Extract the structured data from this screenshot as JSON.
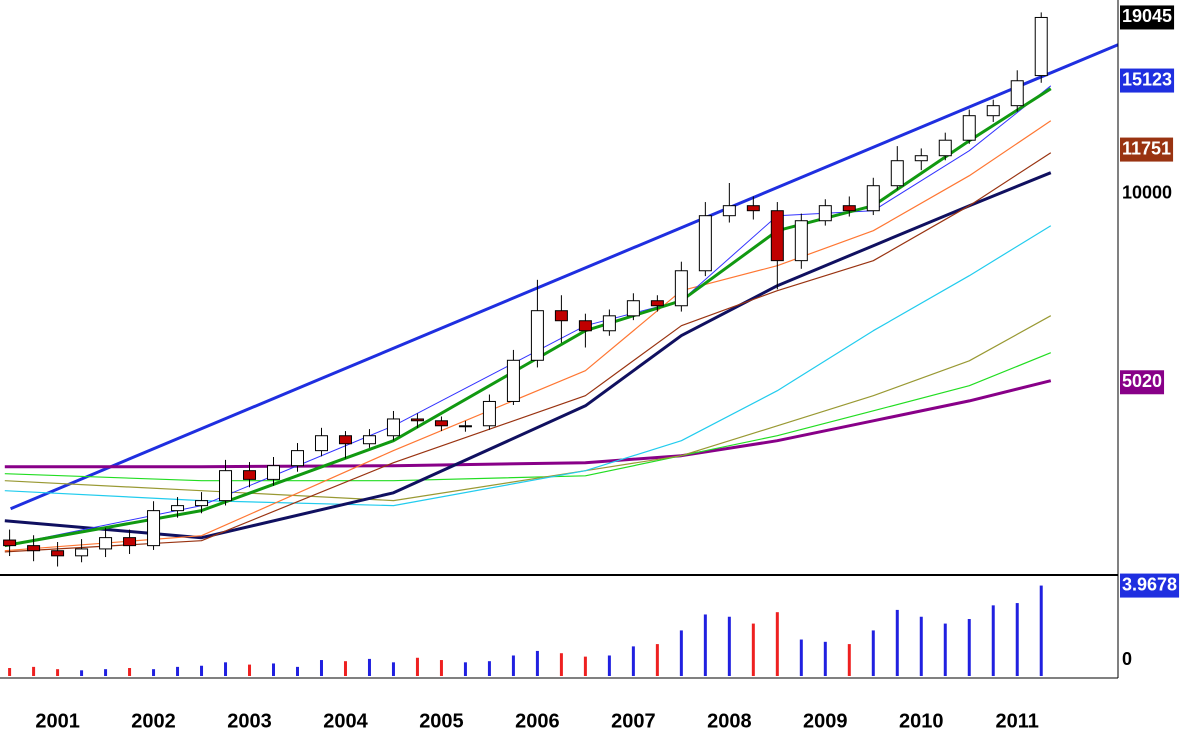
{
  "chart_data": {
    "type": "candlestick",
    "log_scale": true,
    "xlim": [
      2000.4,
      2012.05
    ],
    "xticks": [
      2001,
      2002,
      2003,
      2004,
      2005,
      2006,
      2007,
      2008,
      2009,
      2010,
      2011
    ],
    "ylim": [
      2500,
      20300
    ],
    "x": [
      2000.5,
      2000.75,
      2001,
      2001.25,
      2001.5,
      2001.75,
      2002,
      2002.25,
      2002.5,
      2002.75,
      2003,
      2003.25,
      2003.5,
      2003.75,
      2004,
      2004.25,
      2004.5,
      2004.75,
      2005,
      2005.25,
      2005.5,
      2005.75,
      2006,
      2006.25,
      2006.5,
      2006.75,
      2007,
      2007.25,
      2007.5,
      2007.75,
      2008,
      2008.25,
      2008.5,
      2008.75,
      2009,
      2009.25,
      2009.5,
      2009.75,
      2010,
      2010.25,
      2010.5,
      2010.75,
      2011,
      2011.25
    ],
    "open": [
      2820,
      2763,
      2712,
      2662,
      2730,
      2845,
      2763,
      3140,
      3198,
      3257,
      3634,
      3520,
      3701,
      3910,
      4129,
      4010,
      4129,
      4390,
      4361,
      4282,
      4282,
      4680,
      5440,
      6521,
      6286,
      6060,
      6400,
      6763,
      6640,
      7546,
      9228,
      9572,
      9398,
      7830,
      9060,
      9572,
      9398,
      10297,
      11282,
      11490,
      12160,
      13300,
      13796,
      15400
    ],
    "high": [
      2930,
      2870,
      2800,
      2830,
      2950,
      2930,
      3250,
      3300,
      3360,
      3780,
      3750,
      3820,
      4020,
      4250,
      4200,
      4230,
      4520,
      4480,
      4430,
      4360,
      4800,
      5650,
      7300,
      6900,
      6450,
      6550,
      6950,
      6900,
      7800,
      9700,
      10400,
      9900,
      9700,
      9300,
      9800,
      9900,
      10600,
      11900,
      11800,
      12500,
      13600,
      14100,
      15700,
      19400
    ],
    "low": [
      2660,
      2610,
      2560,
      2600,
      2650,
      2680,
      2720,
      3060,
      3110,
      3200,
      3420,
      3440,
      3620,
      3830,
      3800,
      3950,
      4060,
      4250,
      4200,
      4190,
      4220,
      4620,
      5300,
      5800,
      5700,
      5950,
      6300,
      6500,
      6500,
      7400,
      9000,
      9100,
      7050,
      7600,
      8900,
      9200,
      9250,
      10150,
      10900,
      11300,
      12000,
      13000,
      13500,
      15000
    ],
    "close": [
      2763,
      2712,
      2662,
      2730,
      2845,
      2763,
      3140,
      3198,
      3257,
      3634,
      3520,
      3701,
      3910,
      4129,
      4010,
      4129,
      4390,
      4361,
      4282,
      4282,
      4680,
      5440,
      6521,
      6286,
      6060,
      6400,
      6763,
      6640,
      7546,
      9228,
      9572,
      9398,
      7830,
      9060,
      9572,
      9398,
      10297,
      11282,
      11490,
      12160,
      13300,
      13796,
      15111,
      19045
    ],
    "up_color": "#ffffff",
    "down_color": "#c00000",
    "overlays": [
      {
        "color": "#1f2fe0",
        "width": 3,
        "x": [
          2000.51,
          2012.05
        ],
        "values": [
          3162,
          17240
        ]
      },
      {
        "color": "#880088",
        "width": 3,
        "x": [
          2000.45,
          2002.5,
          2004.5,
          2006.5,
          2007.5,
          2008.5,
          2009.5,
          2010.5,
          2011.35
        ],
        "values": [
          3687,
          3687,
          3701,
          3741,
          3838,
          4054,
          4361,
          4690,
          5049
        ]
      },
      {
        "color": "#22dd22",
        "width": 1.2,
        "x": [
          2000.45,
          2002.5,
          2004.5,
          2006.5,
          2007.5,
          2008.5,
          2009.5,
          2010.5,
          2011.35
        ],
        "values": [
          3594,
          3503,
          3503,
          3567,
          3838,
          4129,
          4523,
          4958,
          5592
        ]
      },
      {
        "color": "#999933",
        "width": 1.2,
        "x": [
          2000.45,
          2002.5,
          2004.5,
          2006.5,
          2007.5,
          2008.5,
          2009.5,
          2010.5,
          2011.35
        ],
        "values": [
          3503,
          3377,
          3257,
          3634,
          3838,
          4282,
          4779,
          5430,
          6402
        ]
      },
      {
        "color": "#22ccee",
        "width": 1.2,
        "x": [
          2000.45,
          2002.5,
          2004.5,
          2006.5,
          2007.5,
          2008.5,
          2009.5,
          2010.5,
          2011.35
        ],
        "values": [
          3377,
          3257,
          3198,
          3634,
          4054,
          4867,
          6062,
          7411,
          8897
        ]
      },
      {
        "color": "#101060",
        "width": 3,
        "x": [
          2000.45,
          2002.5,
          2004.5,
          2006.5,
          2007.5,
          2008.5,
          2009.5,
          2010.5,
          2011.35
        ],
        "values": [
          3027,
          2844,
          3352,
          4607,
          5953,
          7145,
          8270,
          9572,
          10798
        ]
      },
      {
        "color": "#993311",
        "width": 1.2,
        "x": [
          2000.45,
          2002.5,
          2004.5,
          2006.5,
          2007.5,
          2008.5,
          2009.5,
          2010.5,
          2011.35
        ],
        "values": [
          2700,
          2813,
          3741,
          4779,
          6173,
          7015,
          7827,
          9572,
          11617
        ]
      },
      {
        "color": "#ff7733",
        "width": 1.2,
        "x": [
          2000.45,
          2002.5,
          2004.5,
          2006.5,
          2007.5,
          2008.5,
          2009.5,
          2010.5,
          2011.35
        ],
        "values": [
          2712,
          2865,
          3910,
          5236,
          7015,
          7688,
          8736,
          10680,
          13056
        ]
      },
      {
        "color": "#3333ff",
        "width": 1,
        "x": [
          2000.45,
          2002.5,
          2004.5,
          2006.5,
          2007.5,
          2008.5,
          2009.5,
          2010.5,
          2011.35
        ],
        "values": [
          2763,
          3198,
          4282,
          6173,
          6763,
          9228,
          9398,
          11702,
          14836
        ]
      },
      {
        "color": "#119911",
        "width": 3,
        "x": [
          2000.45,
          2002.5,
          2004.5,
          2006.5,
          2007.5,
          2008.5,
          2009.5,
          2010.5,
          2011.35
        ],
        "values": [
          2763,
          3140,
          4054,
          6062,
          6763,
          8736,
          9572,
          12139,
          14680
        ]
      }
    ],
    "price_labels": [
      {
        "value": 19045,
        "color": "#000000"
      },
      {
        "value": 15123,
        "color": "#1f2fe0"
      },
      {
        "value": 11751,
        "color": "#993311"
      },
      {
        "value": 10000
      },
      {
        "value": 5020,
        "color": "#880088"
      }
    ],
    "volume": {
      "ylim": [
        0,
        4.3
      ],
      "up_color": "#2020e0",
      "down_color": "#ee2020",
      "values": [
        0.35,
        0.4,
        0.3,
        0.25,
        0.3,
        0.35,
        0.3,
        0.4,
        0.45,
        0.6,
        0.5,
        0.55,
        0.4,
        0.7,
        0.65,
        0.75,
        0.6,
        0.8,
        0.7,
        0.6,
        0.65,
        0.9,
        1.1,
        1.0,
        0.85,
        0.9,
        1.3,
        1.4,
        2.0,
        2.7,
        2.6,
        2.3,
        2.8,
        1.6,
        1.5,
        1.4,
        2.0,
        2.9,
        2.6,
        2.3,
        2.5,
        3.1,
        3.2,
        3.9678
      ],
      "labels": [
        {
          "value": 3.9678,
          "color": "#1f2fe0"
        },
        {
          "value": 0
        }
      ]
    }
  }
}
